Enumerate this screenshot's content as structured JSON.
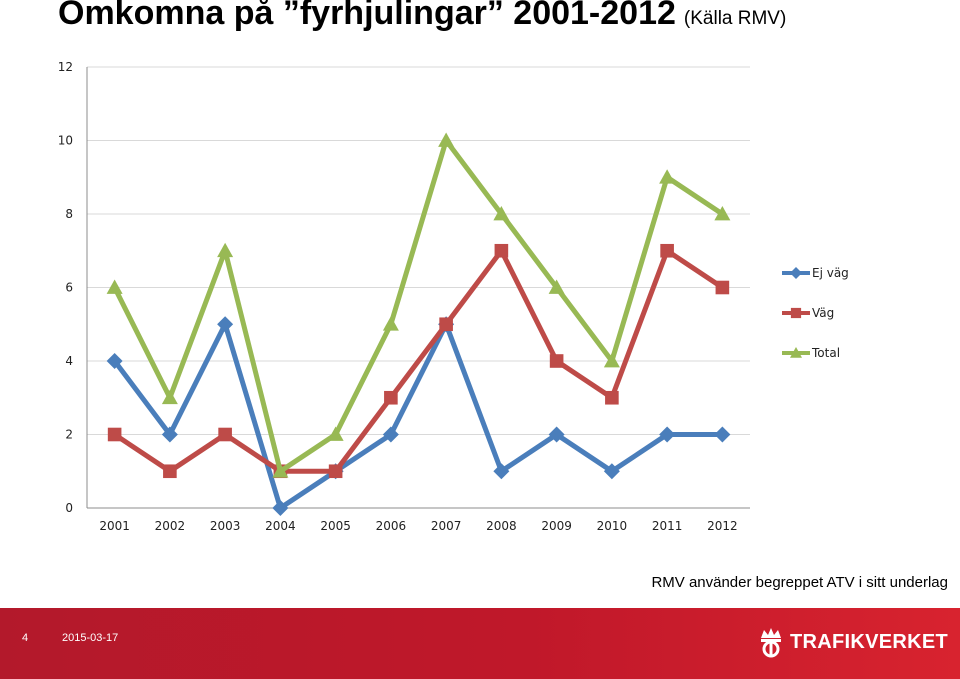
{
  "header": {
    "title": "Omkomna på ”fyrhjulingar” 2001-2012",
    "source": "(Källa RMV)"
  },
  "note": "RMV använder begreppet ATV i sitt underlag",
  "footer": {
    "page_number": "4",
    "date": "2015-03-17",
    "logo_text": "TRAFIKVERKET"
  },
  "chart_data": {
    "type": "line",
    "categories": [
      "2001",
      "2002",
      "2003",
      "2004",
      "2005",
      "2006",
      "2007",
      "2008",
      "2009",
      "2010",
      "2011",
      "2012"
    ],
    "series": [
      {
        "name": "Ej väg",
        "values": [
          4,
          2,
          5,
          0,
          1,
          2,
          5,
          1,
          2,
          1,
          2,
          2
        ],
        "color": "#4a7ebb",
        "marker": "diamond"
      },
      {
        "name": "Väg",
        "values": [
          2,
          1,
          2,
          1,
          1,
          3,
          5,
          7,
          4,
          3,
          7,
          6
        ],
        "color": "#be4b48",
        "marker": "square"
      },
      {
        "name": "Total",
        "values": [
          6,
          3,
          7,
          1,
          2,
          5,
          10,
          8,
          6,
          4,
          9,
          8
        ],
        "color": "#98b954",
        "marker": "triangle"
      }
    ],
    "ylim": [
      0,
      12
    ],
    "yticks": [
      0,
      2,
      4,
      6,
      8,
      10,
      12
    ],
    "grid": true,
    "legend_position": "right"
  }
}
